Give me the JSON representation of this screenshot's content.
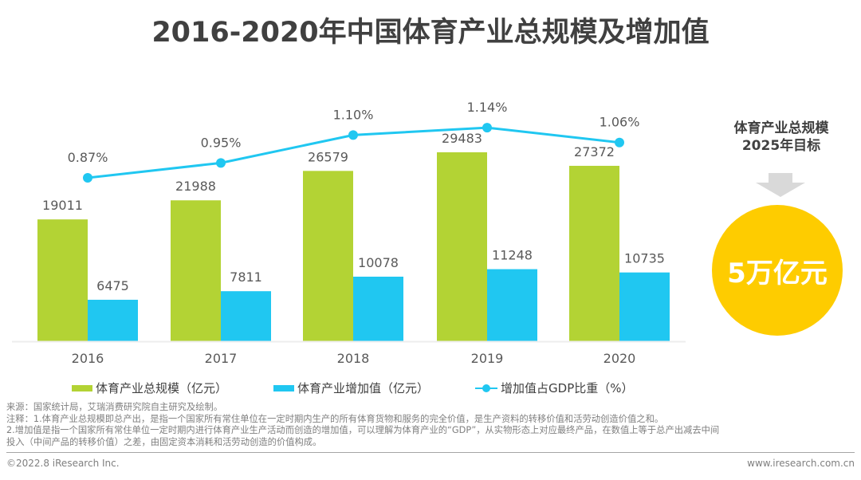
{
  "title": "2016-2020年中国体育产业总规模及增加值",
  "chart_data": {
    "type": "bar",
    "title": "2016-2020年中国体育产业总规模及增加值",
    "categories": [
      "2016",
      "2017",
      "2018",
      "2019",
      "2020"
    ],
    "series": [
      {
        "name": "体育产业总规模（亿元）",
        "type": "bar",
        "color": "#b3d334",
        "values": [
          19011,
          21988,
          26579,
          29483,
          27372
        ],
        "labels": [
          "19011",
          "21988",
          "26579",
          "29483",
          "27372"
        ]
      },
      {
        "name": "体育产业增加值（亿元）",
        "type": "bar",
        "color": "#20c7f1",
        "values": [
          6475,
          7811,
          10078,
          11248,
          10735
        ],
        "labels": [
          "6475",
          "7811",
          "10078",
          "11248",
          "10735"
        ]
      },
      {
        "name": "增加值占GDP比重（%）",
        "type": "line",
        "color": "#20c7f1",
        "values": [
          0.87,
          0.95,
          1.1,
          1.14,
          1.06
        ],
        "labels": [
          "0.87%",
          "0.95%",
          "1.10%",
          "1.14%",
          "1.06%"
        ]
      }
    ],
    "xlabel": "",
    "ylabel": "",
    "grid": false,
    "legend_position": "bottom"
  },
  "target": {
    "title_line1": "体育产业总规模",
    "title_line2": "2025年目标",
    "value": "5万亿元",
    "circle_color": "#fecc00",
    "arrow_color": "#d9d9d9"
  },
  "notes": [
    "来源：国家统计局，艾瑞消费研究院自主研究及绘制。",
    "注释：1.体育产业总规模即总产出，是指一个国家所有常住单位在一定时期内生产的所有体育货物和服务的完全价值，是生产资料的转移价值和活劳动创造价值之和。",
    "2.增加值是指一个国家所有常住单位一定时期内进行体育产业生产活动而创造的增加值，可以理解为体育产业的“GDP”，从实物形态上对应最终产品，在数值上等于总产出减去中间",
    "投入（中间产品的转移价值）之差，由固定资本消耗和活劳动创造的价值构成。"
  ],
  "footer": {
    "copyright": "©2022.8 iResearch Inc.",
    "website": "www.iresearch.com.cn"
  }
}
